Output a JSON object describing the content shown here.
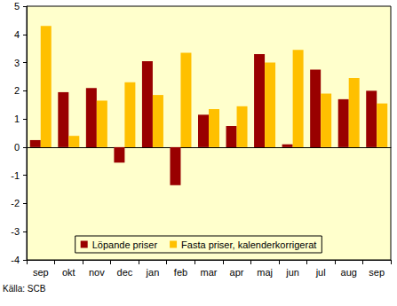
{
  "chart_data": {
    "type": "bar",
    "categories": [
      "sep",
      "okt",
      "nov",
      "dec",
      "jan",
      "feb",
      "mar",
      "apr",
      "maj",
      "jun",
      "jul",
      "aug",
      "sep"
    ],
    "series": [
      {
        "name": "Löpande priser",
        "color": "#990000",
        "values": [
          0.25,
          1.95,
          2.1,
          -0.55,
          3.05,
          -1.35,
          1.15,
          0.75,
          3.3,
          0.1,
          2.75,
          1.7,
          2.0
        ]
      },
      {
        "name": "Fasta priser, kalenderkorrigerat",
        "color": "#FFC000",
        "values": [
          4.3,
          0.4,
          1.65,
          2.3,
          1.85,
          3.35,
          1.35,
          1.45,
          3.0,
          3.45,
          1.9,
          2.45,
          1.55
        ]
      }
    ],
    "ylim": [
      -4,
      5
    ],
    "yticks": [
      -4,
      -3,
      -2,
      -1,
      0,
      1,
      2,
      3,
      4,
      5
    ],
    "grid": false,
    "legend": "lower center",
    "annotations": [
      "Källa: SCB"
    ]
  }
}
